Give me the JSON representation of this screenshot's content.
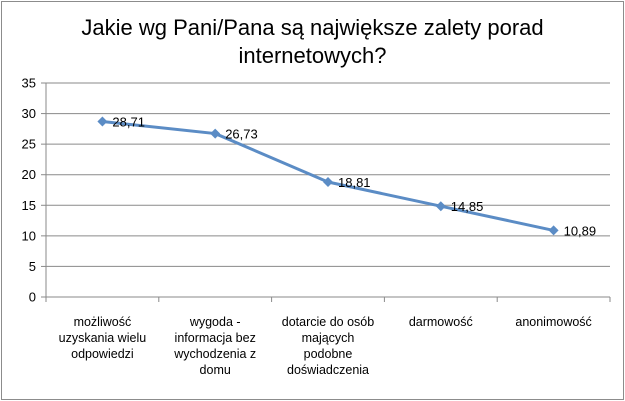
{
  "chart_data": {
    "type": "line",
    "title_lines": [
      "Jakie wg Pani/Pana są największe zalety porad",
      "internetowych?"
    ],
    "categories": [
      [
        "możliwość",
        "uzyskania wielu",
        "odpowiedzi"
      ],
      [
        "wygoda -",
        "informacja bez",
        "wychodzenia z",
        "domu"
      ],
      [
        "dotarcie do osób",
        "mających",
        "podobne",
        "doświadczenia"
      ],
      [
        "darmowość"
      ],
      [
        "anonimowość"
      ]
    ],
    "values": [
      28.71,
      26.73,
      18.81,
      14.85,
      10.89
    ],
    "data_labels": [
      "28,71",
      "26,73",
      "18,81",
      "14,85",
      "10,89"
    ],
    "ylim": [
      0,
      35
    ],
    "yticks": [
      "0",
      "5",
      "10",
      "15",
      "20",
      "25",
      "30",
      "35"
    ],
    "grid": true,
    "series_color": "#5b8cc5",
    "marker": "diamond"
  }
}
